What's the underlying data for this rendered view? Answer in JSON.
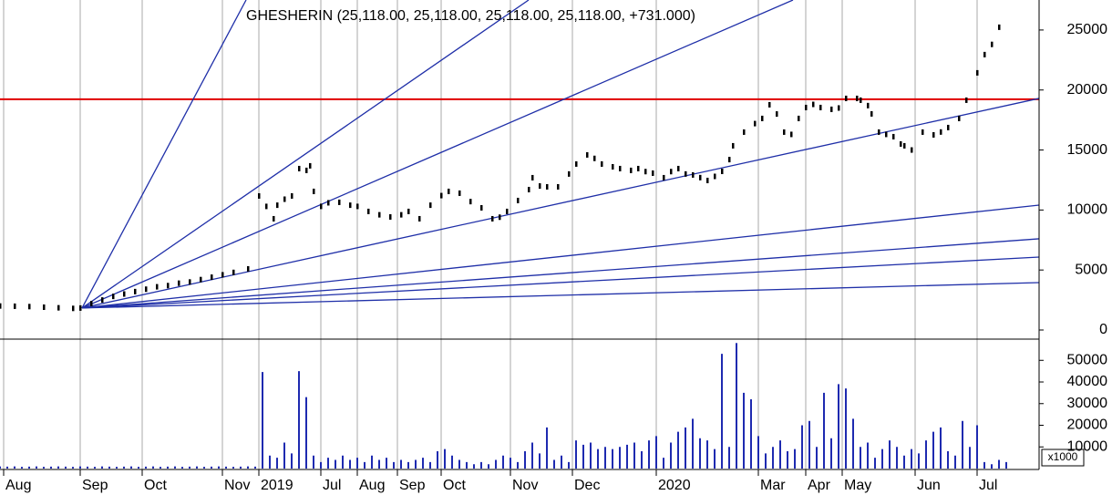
{
  "chart_data": [
    {
      "type": "scatter",
      "title": "GHESHERIN (25,118.00, 25,118.00, 25,118.00, 25,118.00, +731.000)",
      "xlim": [
        0,
        285
      ],
      "ylim": [
        -760,
        27500
      ],
      "yticks": [
        0,
        5000,
        10000,
        15000,
        20000,
        25000
      ],
      "color": "#000000",
      "x": [
        0,
        4,
        8,
        12,
        16,
        20,
        22,
        25,
        28,
        31,
        34,
        37,
        40,
        43,
        46,
        49,
        52,
        55,
        58,
        61,
        64,
        68,
        71,
        73,
        75,
        76,
        78,
        80,
        82,
        84,
        85,
        86,
        88,
        90,
        93,
        96,
        98,
        101,
        104,
        107,
        110,
        112,
        115,
        118,
        121,
        123,
        126,
        129,
        132,
        135,
        137,
        139,
        142,
        145,
        146,
        148,
        150,
        153,
        156,
        158,
        161,
        163,
        165,
        168,
        170,
        173,
        175,
        177,
        179,
        182,
        184,
        186,
        188,
        190,
        192,
        194,
        196,
        198,
        200,
        201,
        204,
        207,
        209,
        211,
        213,
        215,
        217,
        219,
        221,
        223,
        225,
        228,
        230,
        232,
        235,
        236,
        238,
        239,
        241,
        243,
        245,
        247,
        248,
        250,
        253,
        256,
        258,
        260,
        263,
        265,
        268,
        270,
        272,
        274
      ],
      "values": [
        2000,
        1980,
        1950,
        1900,
        1850,
        1800,
        1830,
        2200,
        2500,
        2800,
        3000,
        3200,
        3400,
        3600,
        3700,
        3900,
        4000,
        4200,
        4400,
        4600,
        4800,
        5090,
        11170,
        10300,
        9270,
        10400,
        10900,
        11170,
        13450,
        13300,
        13680,
        11550,
        10300,
        10600,
        10640,
        10400,
        10300,
        9880,
        9600,
        9420,
        9600,
        9880,
        9270,
        10400,
        11200,
        11550,
        11400,
        10700,
        10180,
        9270,
        9400,
        9880,
        10790,
        11700,
        12690,
        12000,
        11930,
        11930,
        13000,
        13830,
        14590,
        14300,
        13830,
        13600,
        13450,
        13300,
        13450,
        13200,
        13070,
        12690,
        13200,
        13450,
        13000,
        12920,
        12700,
        12460,
        12800,
        13220,
        14200,
        15350,
        16490,
        17200,
        17630,
        18770,
        18000,
        16490,
        16300,
        17630,
        18540,
        18800,
        18540,
        18390,
        18500,
        19300,
        19300,
        19150,
        18700,
        18010,
        16490,
        16300,
        16110,
        15500,
        15350,
        15000,
        16490,
        16260,
        16500,
        16870,
        17630,
        19150,
        21430,
        22950,
        23800,
        25230
      ],
      "reference_lines": [
        {
          "value": 19225,
          "color": "#e00000"
        }
      ],
      "trend_color": "#1f2fa8",
      "trend_lines": [
        {
          "x": [
            22.5,
            67.5
          ],
          "values": [
            1830,
            27500
          ]
        },
        {
          "x": [
            22.5,
            145
          ],
          "values": [
            1830,
            27500
          ]
        },
        {
          "x": [
            22.5,
            217.5
          ],
          "values": [
            1830,
            27500
          ]
        },
        {
          "x": [
            22.5,
            285
          ],
          "values": [
            1830,
            19300
          ]
        },
        {
          "x": [
            22.5,
            285
          ],
          "values": [
            1830,
            10410
          ]
        },
        {
          "x": [
            22.5,
            285
          ],
          "values": [
            1830,
            7600
          ]
        },
        {
          "x": [
            22.5,
            285
          ],
          "values": [
            1830,
            6080
          ]
        },
        {
          "x": [
            22.5,
            285
          ],
          "values": [
            1830,
            3950
          ]
        }
      ]
    },
    {
      "type": "bar",
      "xlim": [
        0,
        285
      ],
      "ylim": [
        0,
        59800
      ],
      "yticks": [
        10000,
        20000,
        30000,
        40000,
        50000
      ],
      "y_unit_label": "x1000",
      "color": "#1e2ab0",
      "xticks": [
        {
          "value": 1,
          "label": "Aug"
        },
        {
          "value": 22,
          "label": "Sep"
        },
        {
          "value": 39,
          "label": "Oct"
        },
        {
          "value": 61,
          "label": "Nov"
        },
        {
          "value": 71,
          "label": "2019"
        },
        {
          "value": 88,
          "label": "Jul"
        },
        {
          "value": 98,
          "label": "Aug"
        },
        {
          "value": 109,
          "label": "Sep"
        },
        {
          "value": 121,
          "label": "Oct"
        },
        {
          "value": 140,
          "label": "Nov"
        },
        {
          "value": 157,
          "label": "Dec"
        },
        {
          "value": 180,
          "label": "2020"
        },
        {
          "value": 208,
          "label": "Mar"
        },
        {
          "value": 221,
          "label": "Apr"
        },
        {
          "value": 231,
          "label": "May"
        },
        {
          "value": 251,
          "label": "Jun"
        },
        {
          "value": 268,
          "label": "Jul"
        }
      ],
      "x": [
        0,
        2,
        4,
        6,
        8,
        10,
        12,
        14,
        16,
        18,
        20,
        22,
        24,
        26,
        28,
        30,
        32,
        34,
        36,
        38,
        40,
        42,
        44,
        46,
        48,
        50,
        52,
        54,
        56,
        58,
        60,
        62,
        64,
        66,
        68,
        70,
        72,
        74,
        76,
        78,
        80,
        82,
        84,
        86,
        88,
        90,
        92,
        94,
        96,
        98,
        100,
        102,
        104,
        106,
        108,
        110,
        112,
        114,
        116,
        118,
        120,
        122,
        124,
        126,
        128,
        130,
        132,
        134,
        136,
        138,
        140,
        142,
        144,
        146,
        148,
        150,
        152,
        154,
        156,
        158,
        160,
        162,
        164,
        166,
        168,
        170,
        172,
        174,
        176,
        178,
        180,
        182,
        184,
        186,
        188,
        190,
        192,
        194,
        196,
        198,
        200,
        202,
        204,
        206,
        208,
        210,
        212,
        214,
        216,
        218,
        220,
        222,
        224,
        226,
        228,
        230,
        232,
        234,
        236,
        238,
        240,
        242,
        244,
        246,
        248,
        250,
        252,
        254,
        256,
        258,
        260,
        262,
        264,
        266,
        268,
        270,
        272,
        274,
        276
      ],
      "values": [
        1000,
        900,
        1000,
        800,
        900,
        1000,
        800,
        900,
        1000,
        900,
        800,
        1000,
        900,
        800,
        1000,
        900,
        800,
        900,
        1000,
        800,
        900,
        1000,
        800,
        900,
        1000,
        800,
        900,
        1000,
        800,
        900,
        1000,
        900,
        800,
        900,
        1000,
        900,
        44600,
        6000,
        5000,
        12000,
        7000,
        45000,
        33000,
        6000,
        3000,
        5000,
        4000,
        6000,
        4000,
        5000,
        3000,
        6000,
        4000,
        5000,
        3000,
        4000,
        3000,
        4000,
        5000,
        3000,
        8000,
        9000,
        6000,
        4000,
        3000,
        2000,
        3000,
        2000,
        4000,
        6000,
        5000,
        3000,
        8000,
        12000,
        7000,
        19000,
        4000,
        6000,
        3000,
        13000,
        11000,
        12000,
        9000,
        10000,
        9000,
        10000,
        11000,
        12000,
        8000,
        13000,
        15000,
        5000,
        12000,
        17000,
        19000,
        23000,
        14000,
        13000,
        9000,
        53000,
        10000,
        58000,
        35000,
        32000,
        15000,
        7000,
        10000,
        13000,
        8000,
        9000,
        20000,
        22000,
        10000,
        35000,
        14000,
        39000,
        37000,
        23000,
        10000,
        12000,
        5000,
        9000,
        13000,
        10000,
        6000,
        9000,
        7000,
        13000,
        17000,
        19000,
        8000,
        6000,
        22000,
        10000,
        20000,
        3000,
        2000,
        4000,
        3000
      ]
    }
  ]
}
